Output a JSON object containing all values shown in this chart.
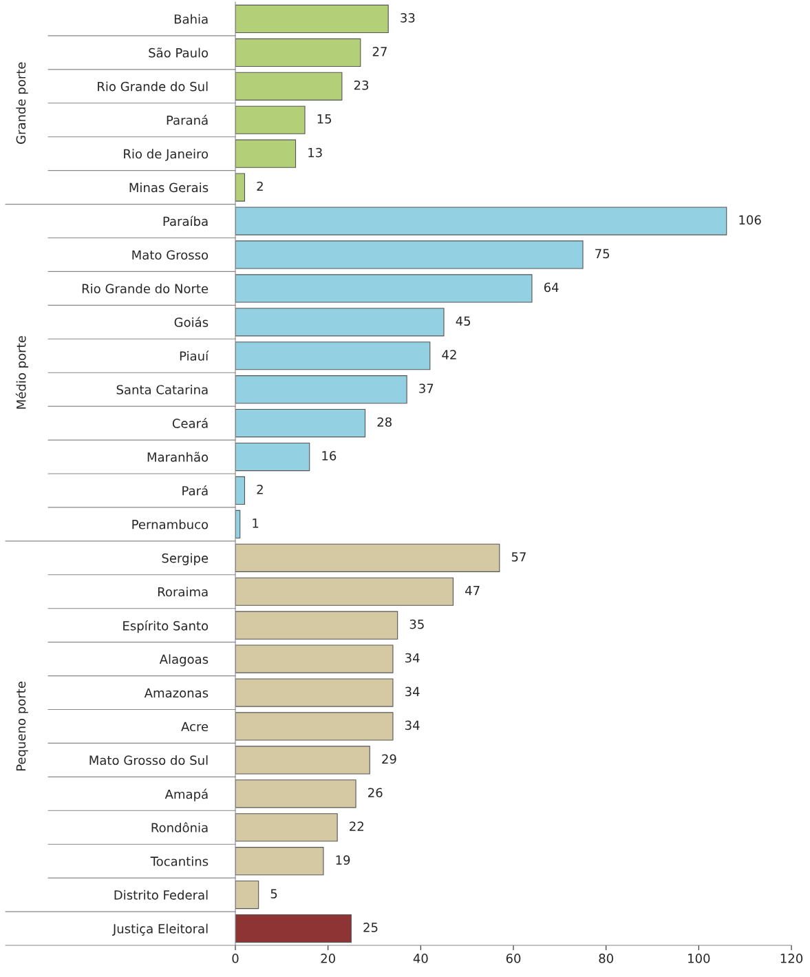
{
  "chart_data": {
    "type": "bar",
    "orientation": "horizontal",
    "categories": [
      "Bahia",
      "São Paulo",
      "Rio Grande do Sul",
      "Paraná",
      "Rio de Janeiro",
      "Minas Gerais",
      "Paraíba",
      "Mato Grosso",
      "Rio Grande do Norte",
      "Goiás",
      "Piauí",
      "Santa Catarina",
      "Ceará",
      "Maranhão",
      "Pará",
      "Pernambuco",
      "Sergipe",
      "Roraima",
      "Espírito Santo",
      "Alagoas",
      "Amazonas",
      "Acre",
      "Mato Grosso do Sul",
      "Amapá",
      "Rondônia",
      "Tocantins",
      "Distrito Federal",
      "Justiça Eleitoral"
    ],
    "values": [
      33,
      27,
      23,
      15,
      13,
      2,
      106,
      75,
      64,
      45,
      42,
      37,
      28,
      16,
      2,
      1,
      57,
      47,
      35,
      34,
      34,
      34,
      29,
      26,
      22,
      19,
      5,
      25
    ],
    "colors": [
      "#b3cf78",
      "#b3cf78",
      "#b3cf78",
      "#b3cf78",
      "#b3cf78",
      "#b3cf78",
      "#93d0e2",
      "#93d0e2",
      "#93d0e2",
      "#93d0e2",
      "#93d0e2",
      "#93d0e2",
      "#93d0e2",
      "#93d0e2",
      "#93d0e2",
      "#93d0e2",
      "#d5c9a3",
      "#d5c9a3",
      "#d5c9a3",
      "#d5c9a3",
      "#d5c9a3",
      "#d5c9a3",
      "#d5c9a3",
      "#d5c9a3",
      "#d5c9a3",
      "#d5c9a3",
      "#d5c9a3",
      "#8e3434"
    ],
    "annotations": [
      "Grande porte",
      "Médio porte",
      "Pequeno porte"
    ],
    "xlim": [
      0,
      120
    ],
    "xticks": [
      0,
      20,
      40,
      60,
      80,
      100,
      120
    ],
    "data_labels": true,
    "grid": false,
    "legend": false
  }
}
